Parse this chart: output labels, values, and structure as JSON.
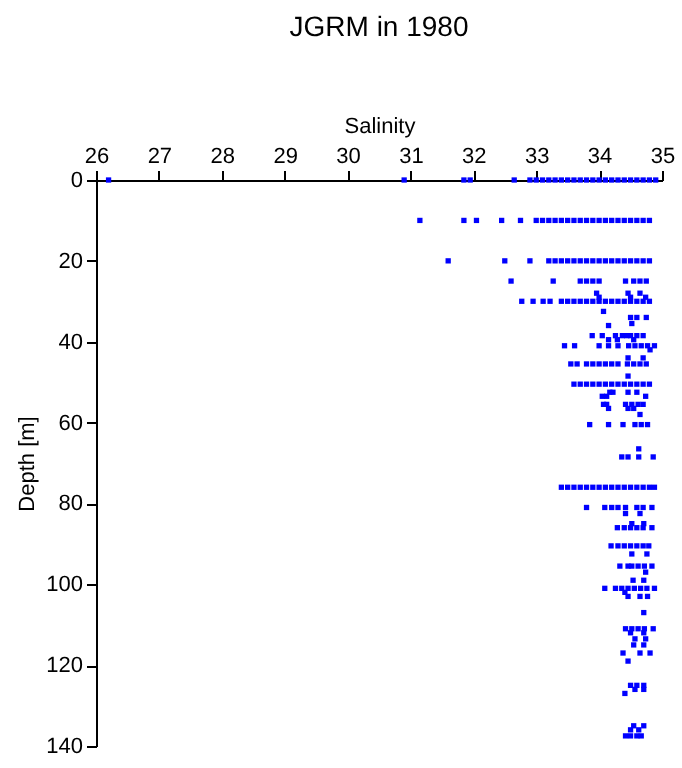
{
  "chart_data": {
    "type": "scatter",
    "title": "JGRM in 1980",
    "xlabel": "Salinity",
    "ylabel": "Depth [m]",
    "xlim": [
      26,
      35
    ],
    "xticks": [
      26,
      27,
      28,
      29,
      30,
      31,
      32,
      33,
      34,
      35
    ],
    "ylim": [
      140,
      0
    ],
    "yticks": [
      0,
      20,
      40,
      60,
      80,
      100,
      120,
      140
    ],
    "grid": false,
    "marker": "square",
    "series": [
      {
        "color": "#0000ff",
        "x": [
          26.2,
          30.9,
          31.85,
          31.95,
          32.65,
          32.9,
          33.0,
          33.1,
          33.2,
          33.3,
          33.4,
          33.5,
          33.6,
          33.7,
          33.8,
          33.9,
          34.0,
          34.1,
          34.2,
          34.3,
          34.4,
          34.5,
          34.6,
          34.7,
          34.8,
          34.9,
          31.15,
          31.85,
          32.05,
          32.45,
          32.75,
          33.0,
          33.1,
          33.2,
          33.3,
          33.4,
          33.5,
          33.6,
          33.7,
          33.8,
          33.9,
          34.0,
          34.1,
          34.2,
          34.3,
          34.4,
          34.5,
          34.6,
          34.7,
          34.8,
          31.6,
          32.5,
          32.9,
          33.2,
          33.3,
          33.4,
          33.5,
          33.6,
          33.7,
          33.8,
          33.9,
          34.0,
          34.1,
          34.2,
          34.3,
          34.4,
          34.5,
          34.6,
          34.7,
          34.8,
          32.6,
          33.27,
          33.7,
          33.8,
          33.9,
          34.0,
          34.42,
          34.55,
          34.65,
          34.75,
          33.96,
          34.46,
          34.65,
          34.0,
          34.5,
          34.74,
          32.77,
          32.95,
          33.11,
          33.22,
          33.4,
          33.5,
          33.6,
          33.7,
          33.8,
          33.9,
          34.0,
          34.1,
          34.2,
          34.3,
          34.4,
          34.5,
          34.6,
          34.7,
          34.8,
          34.07,
          34.5,
          34.6,
          34.75,
          34.52,
          34.15,
          33.89,
          34.05,
          34.26,
          34.37,
          34.44,
          34.5,
          34.6,
          34.7,
          34.15,
          34.29,
          34.55,
          33.45,
          33.61,
          34.0,
          34.15,
          34.3,
          34.47,
          34.57,
          34.67,
          34.77,
          34.88,
          34.81,
          34.46,
          34.7,
          33.55,
          33.65,
          33.8,
          33.9,
          34.0,
          34.1,
          34.2,
          34.3,
          34.45,
          34.55,
          34.65,
          34.75,
          34.46,
          33.6,
          33.7,
          33.8,
          33.9,
          34.0,
          34.1,
          34.2,
          34.3,
          34.4,
          34.5,
          34.6,
          34.7,
          34.8,
          34.17,
          34.22,
          34.46,
          34.6,
          34.74,
          34.05,
          34.12,
          34.07,
          34.12,
          34.42,
          34.52,
          34.62,
          34.7,
          34.15,
          34.46,
          34.55,
          34.65,
          33.85,
          34.15,
          34.38,
          34.57,
          34.67,
          34.77,
          34.63,
          34.36,
          34.46,
          34.63,
          34.86,
          33.4,
          33.5,
          33.6,
          33.7,
          33.8,
          33.9,
          34.0,
          34.1,
          34.2,
          34.3,
          34.4,
          34.5,
          34.6,
          34.7,
          34.8,
          34.88,
          33.8,
          34.09,
          34.2,
          34.3,
          34.42,
          34.6,
          34.7,
          34.84,
          34.42,
          34.65,
          34.52,
          34.71,
          34.29,
          34.4,
          34.5,
          34.6,
          34.7,
          34.84,
          34.19,
          34.3,
          34.4,
          34.5,
          34.6,
          34.7,
          34.79,
          34.52,
          34.76,
          34.33,
          34.46,
          34.52,
          34.62,
          34.72,
          34.84,
          34.74,
          34.54,
          34.71,
          34.09,
          34.26,
          34.36,
          34.46,
          34.56,
          34.66,
          34.76,
          34.88,
          34.41,
          34.46,
          34.65,
          34.77,
          34.71,
          34.42,
          34.52,
          34.62,
          34.72,
          34.86,
          34.5,
          34.71,
          34.57,
          34.74,
          34.55,
          34.71,
          34.38,
          34.65,
          34.81,
          34.46,
          34.5,
          34.6,
          34.71,
          34.57,
          34.71,
          34.41,
          34.55,
          34.71,
          34.5,
          34.63,
          34.42,
          34.5,
          34.6,
          34.67
        ],
        "values": [
          0,
          0,
          0,
          0,
          0,
          0,
          0,
          0,
          0,
          0,
          0,
          0,
          0,
          0,
          0,
          0,
          0,
          0,
          0,
          0,
          0,
          0,
          0,
          0,
          0,
          0,
          10,
          10,
          10,
          10,
          10,
          10,
          10,
          10,
          10,
          10,
          10,
          10,
          10,
          10,
          10,
          10,
          10,
          10,
          10,
          10,
          10,
          10,
          10,
          10,
          20,
          20,
          20,
          20,
          20,
          20,
          20,
          20,
          20,
          20,
          20,
          20,
          20,
          20,
          20,
          20,
          20,
          20,
          20,
          20,
          25,
          25,
          25,
          25,
          25,
          25,
          25,
          25,
          25,
          25,
          28,
          28,
          28,
          29,
          29,
          29,
          30,
          30,
          30,
          30,
          30,
          30,
          30,
          30,
          30,
          30,
          30,
          30,
          30,
          30,
          30,
          30,
          30,
          30,
          30,
          32.5,
          34,
          34,
          34,
          35.5,
          36,
          38.5,
          38.5,
          38.5,
          38.5,
          38.5,
          38.5,
          38.5,
          38.5,
          39.5,
          39.5,
          39.5,
          41,
          41,
          41,
          41,
          41,
          41,
          41,
          41,
          41,
          41,
          42,
          44,
          44,
          45.5,
          45.5,
          45.5,
          45.5,
          45.5,
          45.5,
          45.5,
          45.5,
          45.5,
          45.5,
          45.5,
          45.5,
          48.5,
          50.5,
          50.5,
          50.5,
          50.5,
          50.5,
          50.5,
          50.5,
          50.5,
          50.5,
          50.5,
          50.5,
          50.5,
          50.5,
          52.5,
          52.5,
          52.5,
          52.5,
          53.5,
          53.5,
          53.5,
          55.5,
          55.5,
          55.5,
          55.5,
          55.5,
          55.5,
          56.5,
          56.5,
          56.5,
          58,
          60.5,
          60.5,
          60.5,
          60.5,
          60.5,
          60.5,
          66.5,
          68.5,
          68.5,
          68.5,
          68.5,
          76,
          76,
          76,
          76,
          76,
          76,
          76,
          76,
          76,
          76,
          76,
          76,
          76,
          76,
          76,
          76,
          81,
          81,
          81,
          81,
          81,
          81,
          81,
          81,
          82.5,
          82.5,
          85,
          85,
          86,
          86,
          86,
          86,
          86,
          86,
          90.5,
          90.5,
          90.5,
          90.5,
          90.5,
          90.5,
          90.5,
          92.5,
          92.5,
          95.5,
          95.5,
          95.5,
          95.5,
          95.5,
          95.5,
          97,
          99,
          99,
          101,
          101,
          101,
          101,
          101,
          101,
          101,
          101,
          102,
          103,
          103,
          103,
          107,
          111,
          111,
          111,
          111,
          111,
          112,
          112,
          113.5,
          113.5,
          115,
          115,
          117,
          117,
          117,
          119,
          125,
          125,
          125,
          126,
          126,
          127,
          135,
          135,
          136,
          136,
          137.5,
          137.5,
          137.5,
          137.5
        ]
      }
    ]
  }
}
